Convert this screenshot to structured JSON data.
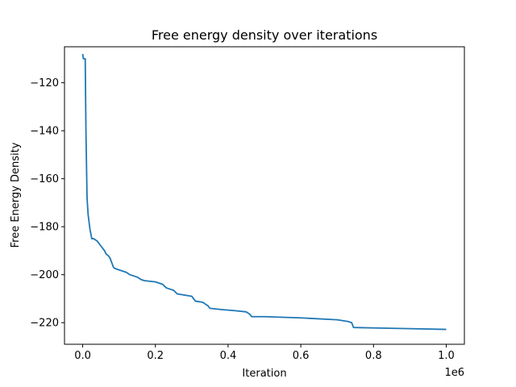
{
  "chart_data": {
    "type": "line",
    "title": "Free energy density over iterations",
    "xlabel": "Iteration",
    "ylabel": "Free Energy Density",
    "x_offset_label": "1e6",
    "xlim": [
      -0.05,
      1.05
    ],
    "ylim": [
      -229,
      -105
    ],
    "x_ticks": [
      {
        "value": 0.0,
        "label": "0.0"
      },
      {
        "value": 0.2,
        "label": "0.2"
      },
      {
        "value": 0.4,
        "label": "0.4"
      },
      {
        "value": 0.6,
        "label": "0.6"
      },
      {
        "value": 0.8,
        "label": "0.8"
      },
      {
        "value": 1.0,
        "label": "1.0"
      }
    ],
    "y_ticks": [
      {
        "value": -120,
        "label": "−120"
      },
      {
        "value": -140,
        "label": "−140"
      },
      {
        "value": -160,
        "label": "−160"
      },
      {
        "value": -180,
        "label": "−180"
      },
      {
        "value": -200,
        "label": "−200"
      },
      {
        "value": -220,
        "label": "−220"
      }
    ],
    "grid": false,
    "line_color": "#1f77b4",
    "series": [
      {
        "x": [
          0.0,
          0.002,
          0.004,
          0.007,
          0.009,
          0.012,
          0.015,
          0.02,
          0.025,
          0.03,
          0.04,
          0.05,
          0.055,
          0.06,
          0.065,
          0.07,
          0.075,
          0.08,
          0.085,
          0.09,
          0.1,
          0.12,
          0.13,
          0.14,
          0.15,
          0.16,
          0.17,
          0.2,
          0.22,
          0.23,
          0.24,
          0.25,
          0.26,
          0.28,
          0.3,
          0.31,
          0.33,
          0.345,
          0.35,
          0.38,
          0.42,
          0.45,
          0.46,
          0.465,
          0.5,
          0.6,
          0.7,
          0.73,
          0.74,
          0.745,
          0.8,
          0.9,
          1.0
        ],
        "y": [
          -108,
          -110,
          -110,
          -110,
          -140,
          -168,
          -175,
          -181,
          -185,
          -185,
          -186,
          -188,
          -189,
          -190,
          -191.5,
          -192,
          -193,
          -195,
          -197,
          -197.5,
          -198,
          -199,
          -200,
          -200.5,
          -201,
          -202,
          -202.5,
          -203,
          -204,
          -205.5,
          -206,
          -206.5,
          -208,
          -208.5,
          -209,
          -211,
          -211.5,
          -213,
          -214,
          -214.5,
          -215,
          -215.5,
          -216.5,
          -217.5,
          -217.5,
          -218,
          -218.8,
          -219.5,
          -220,
          -222,
          -222.2,
          -222.5,
          -222.8
        ]
      }
    ]
  }
}
